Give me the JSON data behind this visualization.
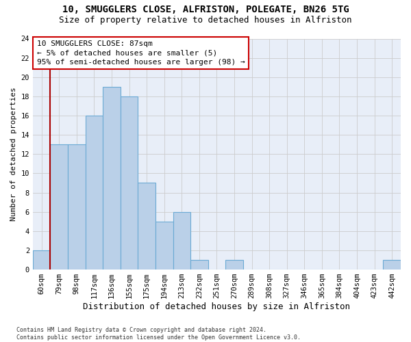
{
  "title1": "10, SMUGGLERS CLOSE, ALFRISTON, POLEGATE, BN26 5TG",
  "title2": "Size of property relative to detached houses in Alfriston",
  "xlabel": "Distribution of detached houses by size in Alfriston",
  "ylabel": "Number of detached properties",
  "bin_labels": [
    "60sqm",
    "79sqm",
    "98sqm",
    "117sqm",
    "136sqm",
    "155sqm",
    "175sqm",
    "194sqm",
    "213sqm",
    "232sqm",
    "251sqm",
    "270sqm",
    "289sqm",
    "308sqm",
    "327sqm",
    "346sqm",
    "365sqm",
    "384sqm",
    "404sqm",
    "423sqm",
    "442sqm"
  ],
  "bar_values": [
    2,
    13,
    13,
    16,
    19,
    18,
    9,
    5,
    6,
    1,
    0,
    1,
    0,
    0,
    0,
    0,
    0,
    0,
    0,
    0,
    1
  ],
  "bar_color": "#bad0e8",
  "bar_edge_color": "#6aaad4",
  "vline_x": 1.0,
  "vline_color": "#aa0000",
  "annotation_line1": "10 SMUGGLERS CLOSE: 87sqm",
  "annotation_line2": "← 5% of detached houses are smaller (5)",
  "annotation_line3": "95% of semi-detached houses are larger (98) →",
  "annotation_box_color": "#ffffff",
  "annotation_box_edge_color": "#cc0000",
  "ylim": [
    0,
    24
  ],
  "yticks": [
    0,
    2,
    4,
    6,
    8,
    10,
    12,
    14,
    16,
    18,
    20,
    22,
    24
  ],
  "grid_color": "#cccccc",
  "bg_color": "#e8eef8",
  "footnote": "Contains HM Land Registry data © Crown copyright and database right 2024.\nContains public sector information licensed under the Open Government Licence v3.0.",
  "title1_fontsize": 10,
  "title2_fontsize": 9,
  "xlabel_fontsize": 9,
  "ylabel_fontsize": 8,
  "tick_fontsize": 7.5,
  "annotation_fontsize": 8
}
